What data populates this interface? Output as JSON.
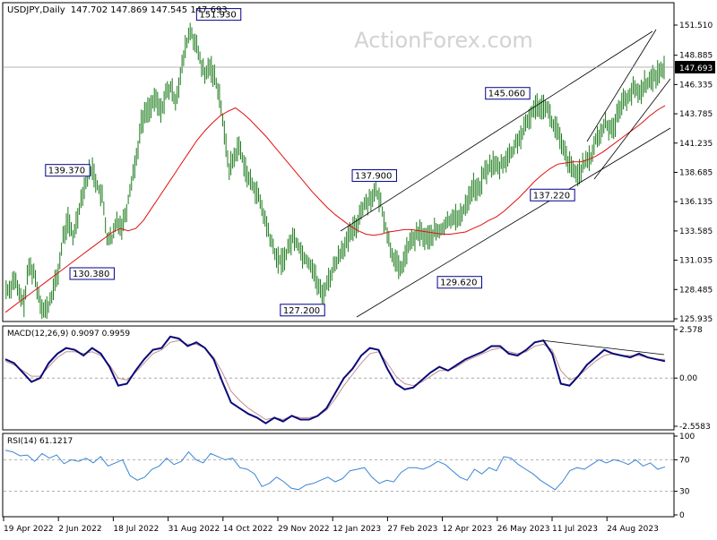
{
  "header": {
    "symbol": "USDJPY,Daily",
    "ohlc": "147.702 147.869 147.545 147.693"
  },
  "watermark": "ActionForex.com",
  "current_price": "147.693",
  "colors": {
    "bar": "#1a7a1a",
    "ma": "#e01010",
    "macd": "#0a0a7a",
    "signal": "#c09090",
    "rsi": "#3a86d4",
    "channel": "#000000",
    "label_border": "#00008b"
  },
  "chart_data": [
    {
      "type": "ohlc",
      "panel": "price",
      "x_labels": [
        "19 Apr 2022",
        "2 Jun 2022",
        "18 Jul 2022",
        "31 Aug 2022",
        "14 Oct 2022",
        "29 Nov 2022",
        "12 Jan 2023",
        "27 Feb 2023",
        "12 Apr 2023",
        "26 May 2023",
        "11 Jul 2023",
        "24 Aug 2023"
      ],
      "y_ticks": [
        "151.510",
        "148.885",
        "146.335",
        "143.785",
        "141.235",
        "138.685",
        "136.135",
        "133.585",
        "131.035",
        "128.485",
        "125.935"
      ],
      "ylim": [
        125.935,
        151.51
      ],
      "series": [
        {
          "values": [
            128.5,
            129.5,
            128.0,
            127.3,
            130.5,
            130.0,
            128.0,
            126.6,
            127.0,
            128.5,
            130.0,
            133.0,
            134.5,
            133.0,
            135.0,
            137.0,
            138.5,
            139.0,
            137.5,
            136.5,
            133.0,
            132.8,
            134.5,
            134.0,
            135.5,
            138.0,
            140.0,
            143.0,
            144.0,
            144.5,
            145.0,
            144.0,
            145.5,
            146.0,
            145.0,
            147.0,
            149.5,
            151.0,
            150.0,
            148.5,
            147.0,
            148.0,
            147.0,
            145.5,
            142.0,
            139.0,
            140.0,
            141.0,
            139.5,
            138.0,
            137.5,
            136.5,
            135.0,
            133.5,
            132.0,
            131.0,
            131.0,
            132.0,
            133.0,
            132.5,
            131.5,
            131.0,
            130.5,
            129.0,
            128.0,
            129.0,
            130.0,
            131.0,
            132.0,
            132.5,
            133.5,
            134.0,
            135.5,
            136.0,
            136.5,
            137.0,
            136.0,
            134.0,
            132.0,
            131.0,
            130.0,
            131.5,
            132.5,
            133.0,
            133.5,
            133.0,
            133.0,
            133.5,
            133.5,
            134.0,
            134.5,
            135.0,
            134.5,
            135.5,
            136.5,
            137.5,
            137.0,
            138.5,
            139.0,
            139.5,
            139.0,
            139.5,
            140.0,
            140.5,
            141.5,
            142.0,
            143.0,
            144.0,
            144.5,
            144.5,
            144.5,
            143.0,
            142.5,
            141.0,
            140.0,
            139.0,
            138.5,
            139.0,
            139.5,
            140.0,
            141.5,
            142.0,
            143.0,
            142.5,
            143.0,
            144.5,
            145.0,
            145.5,
            146.0,
            145.5,
            146.5,
            146.5,
            147.0,
            147.5,
            147.69
          ]
        },
        {
          "name": "MA",
          "values": [
            126.5,
            127.0,
            127.5,
            128.0,
            128.5,
            129.0,
            129.5,
            130.0,
            130.5,
            131.0,
            131.5,
            132.0,
            132.5,
            133.0,
            133.5,
            133.8,
            133.6,
            133.8,
            134.5,
            135.5,
            136.5,
            137.5,
            138.5,
            139.5,
            140.5,
            141.5,
            142.3,
            143.0,
            143.6,
            144.0,
            144.3,
            143.8,
            143.2,
            142.5,
            141.8,
            141.0,
            140.2,
            139.4,
            138.6,
            137.8,
            137.0,
            136.3,
            135.6,
            135.0,
            134.5,
            134.0,
            133.6,
            133.3,
            133.2,
            133.3,
            133.5,
            133.6,
            133.7,
            133.7,
            133.6,
            133.5,
            133.4,
            133.3,
            133.3,
            133.4,
            133.5,
            133.8,
            134.1,
            134.5,
            134.8,
            135.3,
            135.9,
            136.5,
            137.2,
            137.9,
            138.5,
            139.0,
            139.4,
            139.5,
            139.6,
            139.6,
            139.8,
            140.1,
            140.5,
            141.0,
            141.5,
            142.0,
            142.5,
            143.0,
            143.6,
            144.1,
            144.5
          ]
        }
      ],
      "annotations": [
        "151.930",
        "139.370",
        "130.380",
        "127.200",
        "137.900",
        "129.620",
        "145.060",
        "137.220"
      ]
    },
    {
      "type": "line",
      "panel": "macd",
      "title": "MACD(12,26,9) 0.9097 0.9959",
      "y_ticks": [
        "2.578",
        "0.00",
        "-2.5583"
      ],
      "ylim": [
        -2.5583,
        2.578
      ],
      "series": [
        {
          "values": [
            1.0,
            0.8,
            0.3,
            -0.2,
            0.0,
            0.8,
            1.3,
            1.6,
            1.5,
            1.2,
            1.6,
            1.3,
            0.6,
            -0.4,
            -0.3,
            0.4,
            1.0,
            1.5,
            1.6,
            2.2,
            2.1,
            1.7,
            1.9,
            1.6,
            1.0,
            -0.2,
            -1.3,
            -1.6,
            -1.9,
            -2.1,
            -2.4,
            -2.1,
            -2.3,
            -2.0,
            -2.2,
            -2.2,
            -2.0,
            -1.6,
            -0.8,
            0.0,
            0.5,
            1.2,
            1.6,
            1.5,
            0.5,
            -0.3,
            -0.6,
            -0.5,
            -0.1,
            0.3,
            0.6,
            0.4,
            0.7,
            1.0,
            1.2,
            1.4,
            1.7,
            1.7,
            1.3,
            1.2,
            1.5,
            1.9,
            2.0,
            1.3,
            -0.3,
            -0.4,
            0.1,
            0.7,
            1.1,
            1.5,
            1.3,
            1.2,
            1.1,
            1.3,
            1.1,
            1.0,
            0.9
          ]
        },
        {
          "values": [
            0.9,
            0.7,
            0.4,
            0.1,
            0.1,
            0.6,
            1.1,
            1.4,
            1.4,
            1.3,
            1.4,
            1.2,
            0.7,
            0.0,
            -0.1,
            0.3,
            0.8,
            1.3,
            1.5,
            1.9,
            2.0,
            1.8,
            1.8,
            1.6,
            1.1,
            0.3,
            -0.7,
            -1.2,
            -1.6,
            -1.9,
            -2.2,
            -2.1,
            -2.2,
            -2.0,
            -2.1,
            -2.1,
            -2.0,
            -1.7,
            -1.1,
            -0.4,
            0.2,
            0.8,
            1.3,
            1.4,
            0.8,
            0.1,
            -0.3,
            -0.4,
            -0.2,
            0.1,
            0.4,
            0.4,
            0.6,
            0.9,
            1.1,
            1.3,
            1.5,
            1.6,
            1.4,
            1.3,
            1.4,
            1.7,
            1.8,
            1.5,
            0.4,
            -0.1,
            0.1,
            0.5,
            0.9,
            1.2,
            1.3,
            1.2,
            1.2,
            1.2,
            1.1,
            1.0,
            1.0
          ]
        }
      ]
    },
    {
      "type": "line",
      "panel": "rsi",
      "title": "RSI(14) 61.1217",
      "y_ticks": [
        "100",
        "70",
        "30",
        "0"
      ],
      "ylim": [
        0,
        100
      ],
      "series": [
        {
          "values": [
            82,
            80,
            75,
            76,
            68,
            78,
            72,
            76,
            65,
            70,
            68,
            72,
            66,
            74,
            62,
            66,
            70,
            50,
            44,
            48,
            58,
            62,
            72,
            64,
            68,
            80,
            70,
            66,
            78,
            74,
            70,
            72,
            60,
            58,
            52,
            36,
            40,
            48,
            42,
            34,
            32,
            38,
            40,
            44,
            48,
            42,
            46,
            56,
            58,
            60,
            48,
            40,
            44,
            42,
            54,
            60,
            60,
            58,
            62,
            68,
            64,
            56,
            48,
            44,
            58,
            52,
            60,
            56,
            74,
            72,
            64,
            58,
            52,
            44,
            38,
            32,
            42,
            56,
            60,
            58,
            64,
            70,
            66,
            70,
            68,
            64,
            70,
            62,
            66,
            58,
            61
          ]
        }
      ]
    }
  ]
}
